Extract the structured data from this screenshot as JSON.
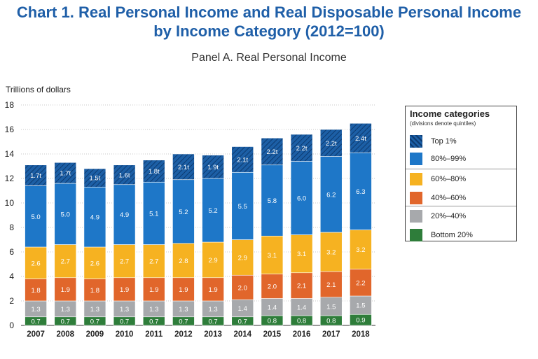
{
  "header": {
    "title_line1": "Chart 1. Real Personal Income and Real Disposable Personal Income",
    "title_line2": "by Income Category (2012=100)",
    "panel_title": "Panel A. Real Personal Income"
  },
  "chart_data": {
    "type": "bar",
    "stacked": true,
    "ylabel": "Trillions of dollars",
    "ylim": [
      0,
      18
    ],
    "yticks": [
      0,
      2,
      4,
      6,
      8,
      10,
      12,
      14,
      16,
      18
    ],
    "categories": [
      "2007",
      "2008",
      "2009",
      "2010",
      "2011",
      "2012",
      "2013",
      "2014",
      "2015",
      "2016",
      "2017",
      "2018"
    ],
    "series": [
      {
        "name": "Bottom 20%",
        "color": "#2e7d3a",
        "values": [
          0.7,
          0.7,
          0.7,
          0.7,
          0.7,
          0.7,
          0.7,
          0.7,
          0.8,
          0.8,
          0.8,
          0.9
        ]
      },
      {
        "name": "20%–40%",
        "color": "#a7a9ac",
        "values": [
          1.3,
          1.3,
          1.3,
          1.3,
          1.3,
          1.3,
          1.3,
          1.4,
          1.4,
          1.4,
          1.5,
          1.5
        ]
      },
      {
        "name": "40%–60%",
        "color": "#e1662b",
        "values": [
          1.8,
          1.9,
          1.8,
          1.9,
          1.9,
          1.9,
          1.9,
          2.0,
          2.0,
          2.1,
          2.1,
          2.2
        ]
      },
      {
        "name": "60%–80%",
        "color": "#f6b221",
        "values": [
          2.6,
          2.7,
          2.6,
          2.7,
          2.7,
          2.8,
          2.9,
          2.9,
          3.1,
          3.1,
          3.2,
          3.2
        ]
      },
      {
        "name": "80%–99%",
        "color": "#1e77c8",
        "values": [
          5.0,
          5.0,
          4.9,
          4.9,
          5.1,
          5.2,
          5.2,
          5.5,
          5.8,
          6.0,
          6.2,
          6.3
        ]
      },
      {
        "name": "Top 1%",
        "color": "#1c5fa6",
        "hatched": true,
        "values": [
          1.7,
          1.7,
          1.5,
          1.6,
          1.8,
          2.1,
          1.9,
          2.1,
          2.2,
          2.2,
          2.2,
          2.4
        ],
        "label_suffix": "t"
      }
    ],
    "legend": {
      "title": "Income categories",
      "note": "(divisions denote quintiles)",
      "position": "right",
      "order": [
        "Top 1%",
        "80%–99%",
        "60%–80%",
        "40%–60%",
        "20%–40%",
        "Bottom 20%"
      ]
    }
  }
}
